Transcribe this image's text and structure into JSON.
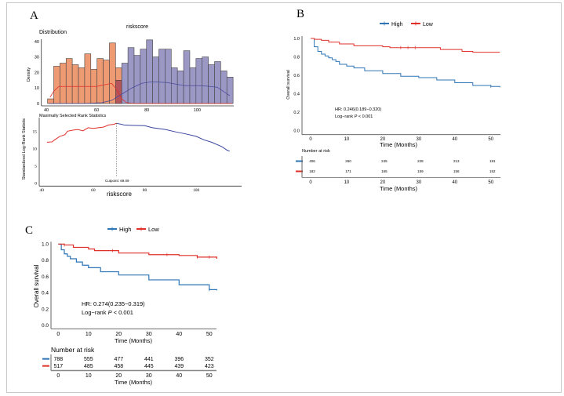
{
  "panels": {
    "a_label": "A",
    "b_label": "B",
    "c_label": "C"
  },
  "chart_data": [
    {
      "id": "A-distribution",
      "type": "bar",
      "title": "riskscore",
      "subtitle": "Distribution",
      "xlabel": "",
      "ylabel": "Density",
      "xlim": [
        38,
        116
      ],
      "ylim": [
        0,
        42
      ],
      "xticks": [
        40,
        60,
        80,
        100
      ],
      "yticks": [
        0,
        10,
        20,
        30,
        40
      ],
      "bin_start": 40.5,
      "bin_width": 2.46,
      "series": [
        {
          "group": "low",
          "color": "#EE9A72",
          "first_bin": 0,
          "values": [
            3,
            24,
            26,
            29,
            25,
            23,
            32,
            22,
            29,
            28,
            39,
            23
          ]
        },
        {
          "group": "high",
          "color": "#9B98C6",
          "first_bin": 11,
          "values": [
            15,
            26,
            36,
            31,
            35,
            41,
            30,
            35,
            35,
            23,
            21,
            34,
            23,
            29,
            30,
            25,
            27,
            21,
            17
          ]
        }
      ],
      "overlap_color": "#B5545A",
      "density_curves": [
        {
          "group": "low",
          "color": "#E0302A",
          "points": [
            [
              41.5,
              4
            ],
            [
              43,
              8
            ],
            [
              45,
              11
            ],
            [
              50,
              11
            ],
            [
              55,
              11
            ],
            [
              60,
              11
            ],
            [
              63,
              12
            ],
            [
              66,
              13
            ],
            [
              68,
              9
            ],
            [
              70,
              3
            ],
            [
              72,
              0.5
            ],
            [
              75,
              0
            ],
            [
              114,
              0
            ]
          ]
        },
        {
          "group": "high",
          "color": "#4A4A9A",
          "points": [
            [
              41,
              0
            ],
            [
              55,
              0
            ],
            [
              62,
              0.5
            ],
            [
              66,
              2
            ],
            [
              70,
              6
            ],
            [
              74,
              10
            ],
            [
              78,
              13
            ],
            [
              82,
              14
            ],
            [
              88,
              13.5
            ],
            [
              95,
              11.5
            ],
            [
              102,
              11.5
            ],
            [
              108,
              10.5
            ],
            [
              113,
              5
            ]
          ]
        }
      ]
    },
    {
      "id": "A-rank",
      "type": "line",
      "title": "Maximally Selected Rank Statistics",
      "xlabel": "riskscore",
      "ylabel": "Standardized Log-Rank Statistic",
      "xlim": [
        38,
        116
      ],
      "ylim": [
        0,
        18
      ],
      "xticks": [
        40,
        60,
        80,
        100
      ],
      "yticks": [
        0,
        5,
        10,
        15
      ],
      "cutpoint": 69.09,
      "cutpoint_label": "Cutpoint: 69.09",
      "series": [
        {
          "group": "low",
          "color": "#E0302A",
          "points": [
            [
              42,
              11.8
            ],
            [
              44,
              11.9
            ],
            [
              45,
              12.5
            ],
            [
              47,
              13.5
            ],
            [
              49,
              14
            ],
            [
              50,
              15
            ],
            [
              52,
              15.3
            ],
            [
              54,
              15.5
            ],
            [
              56,
              15.1
            ],
            [
              58,
              16
            ],
            [
              60,
              15.8
            ],
            [
              62,
              16
            ],
            [
              64,
              16.2
            ],
            [
              66,
              16.8
            ],
            [
              68,
              17
            ],
            [
              69.09,
              17.3
            ]
          ]
        },
        {
          "group": "high",
          "color": "#3A45A0",
          "points": [
            [
              69.09,
              17.3
            ],
            [
              72,
              16.8
            ],
            [
              75,
              16.7
            ],
            [
              80,
              16.6
            ],
            [
              83,
              16
            ],
            [
              88,
              15.5
            ],
            [
              92,
              14.8
            ],
            [
              96,
              14.2
            ],
            [
              100,
              13.5
            ],
            [
              103,
              12.5
            ],
            [
              106,
              11.8
            ],
            [
              110,
              10.5
            ],
            [
              112,
              9.5
            ],
            [
              113,
              9.2
            ]
          ]
        }
      ]
    },
    {
      "id": "B",
      "type": "line",
      "xlabel": "Time (Months)",
      "ylabel": "Overall survival",
      "xlim": [
        0,
        52.5
      ],
      "ylim": [
        0,
        1
      ],
      "xticks": [
        0,
        10,
        20,
        30,
        40,
        50
      ],
      "yticks": [
        "0.0",
        "0.2",
        "0.4",
        "0.6",
        "0.8",
        "1.0"
      ],
      "legend": {
        "position": "top",
        "items": [
          {
            "name": "High",
            "color": "#2E75B6"
          },
          {
            "name": "Low",
            "color": "#E0302A"
          }
        ]
      },
      "annotation": {
        "hr": "HR: 0.246(0.189−0.320)",
        "logrank_prefix": "Log−rank ",
        "p": "P",
        "logrank_suffix": " < 0.001"
      },
      "series": [
        {
          "name": "High",
          "color": "#2E75B6",
          "steps": [
            [
              0,
              1
            ],
            [
              1,
              0.91
            ],
            [
              2,
              0.86
            ],
            [
              3,
              0.83
            ],
            [
              4,
              0.81
            ],
            [
              5,
              0.79
            ],
            [
              6,
              0.77
            ],
            [
              7,
              0.75
            ],
            [
              8,
              0.72
            ],
            [
              10,
              0.7
            ],
            [
              12,
              0.68
            ],
            [
              15,
              0.65
            ],
            [
              20,
              0.62
            ],
            [
              25,
              0.59
            ],
            [
              30,
              0.575
            ],
            [
              35,
              0.55
            ],
            [
              40,
              0.52
            ],
            [
              45,
              0.49
            ],
            [
              50,
              0.48
            ],
            [
              52.5,
              0.47
            ]
          ],
          "censored": [
            50
          ]
        },
        {
          "name": "Low",
          "color": "#E0302A",
          "steps": [
            [
              0,
              1
            ],
            [
              1,
              0.99
            ],
            [
              3,
              0.98
            ],
            [
              5,
              0.96
            ],
            [
              8,
              0.94
            ],
            [
              12,
              0.92
            ],
            [
              20,
              0.91
            ],
            [
              22,
              0.9
            ],
            [
              36,
              0.88
            ],
            [
              42,
              0.86
            ],
            [
              45,
              0.85
            ],
            [
              52.5,
              0.85
            ]
          ],
          "censored": [
            25,
            27,
            29
          ]
        }
      ],
      "risk_table": {
        "title": "Number at risk",
        "xlabel": "Time (Months)",
        "rows": [
          {
            "name": "High",
            "color": "#2E75B6",
            "values": [
              "406",
              "260",
              "245",
              "228",
              "213",
              "191"
            ]
          },
          {
            "name": "Low",
            "color": "#E0302A",
            "values": [
              "182",
              "171",
              "165",
              "159",
              "156",
              "152"
            ]
          }
        ]
      }
    },
    {
      "id": "C",
      "type": "line",
      "xlabel": "Time (Months)",
      "ylabel": "Overall survival",
      "xlim": [
        0,
        52.5
      ],
      "ylim": [
        0,
        1
      ],
      "xticks": [
        0,
        10,
        20,
        30,
        40,
        50
      ],
      "yticks": [
        "0.0",
        "0.2",
        "0.4",
        "0.6",
        "0.8",
        "1.0"
      ],
      "legend": {
        "position": "top",
        "items": [
          {
            "name": "High",
            "color": "#2E75B6"
          },
          {
            "name": "Low",
            "color": "#E0302A"
          }
        ]
      },
      "annotation": {
        "hr": "HR: 0.274(0.235−0.319)",
        "logrank_prefix": "Log−rank ",
        "p": "P",
        "logrank_suffix": " < 0.001"
      },
      "series": [
        {
          "name": "High",
          "color": "#2E75B6",
          "steps": [
            [
              0,
              1
            ],
            [
              1,
              0.93
            ],
            [
              2,
              0.88
            ],
            [
              3,
              0.85
            ],
            [
              4,
              0.82
            ],
            [
              6,
              0.78
            ],
            [
              8,
              0.74
            ],
            [
              10,
              0.71
            ],
            [
              14,
              0.66
            ],
            [
              20,
              0.62
            ],
            [
              30,
              0.56
            ],
            [
              40,
              0.5
            ],
            [
              50,
              0.44
            ],
            [
              52.5,
              0.43
            ]
          ],
          "censored": [
            50
          ]
        },
        {
          "name": "Low",
          "color": "#E0302A",
          "steps": [
            [
              0,
              1
            ],
            [
              2,
              0.99
            ],
            [
              5,
              0.96
            ],
            [
              10,
              0.94
            ],
            [
              12,
              0.92
            ],
            [
              20,
              0.89
            ],
            [
              30,
              0.87
            ],
            [
              40,
              0.86
            ],
            [
              46,
              0.84
            ],
            [
              52.5,
              0.82
            ]
          ],
          "censored": [
            2,
            18,
            36,
            46,
            50
          ]
        }
      ],
      "risk_table": {
        "title": "Number at risk",
        "xlabel": "Time (Months)",
        "rows": [
          {
            "name": "High",
            "color": "#2E75B6",
            "values": [
              "788",
              "555",
              "477",
              "441",
              "396",
              "352"
            ]
          },
          {
            "name": "Low",
            "color": "#E0302A",
            "values": [
              "517",
              "485",
              "458",
              "445",
              "439",
              "423"
            ]
          }
        ]
      }
    }
  ]
}
